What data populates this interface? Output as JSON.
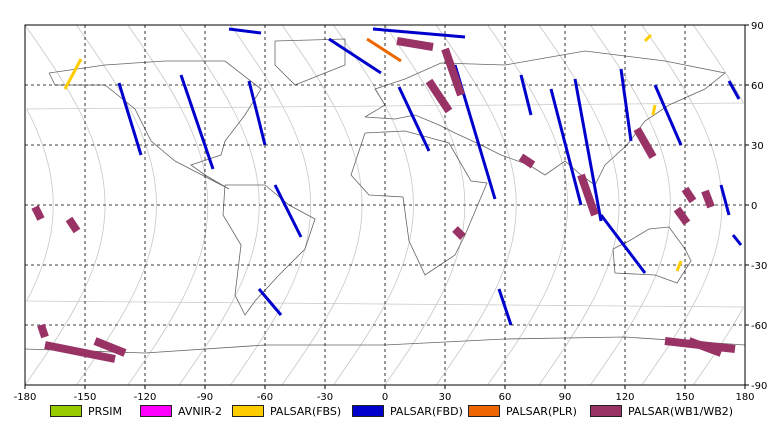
{
  "chart_data": {
    "type": "scatter",
    "title": "",
    "xlabel": "",
    "ylabel": "",
    "xlim": [
      -180,
      180
    ],
    "ylim": [
      -90,
      90
    ],
    "grid": true,
    "legend_placement": "bottom",
    "x_ticks": [
      "-180",
      "-150",
      "-120",
      "-90",
      "-60",
      "-30",
      "0",
      "30",
      "60",
      "90",
      "120",
      "150",
      "180"
    ],
    "y_ticks": [
      "90",
      "60",
      "30",
      "0",
      "-30",
      "-60",
      "-90"
    ],
    "series": [
      {
        "name": "PRSIM",
        "color": "#99cc00",
        "segments": []
      },
      {
        "name": "AVNIR-2",
        "color": "#ff00ff",
        "segments": []
      },
      {
        "name": "PALSAR(FBS)",
        "color": "#ffcc00",
        "segments": [
          [
            [
              -152,
              73
            ],
            [
              -160,
              58
            ]
          ],
          [
            [
              133,
              85
            ],
            [
              130,
              82
            ]
          ],
          [
            [
              135,
              50
            ],
            [
              134,
              45
            ]
          ],
          [
            [
              148,
              -28
            ],
            [
              146,
              -33
            ]
          ]
        ]
      },
      {
        "name": "PALSAR(FBD)",
        "color": "#0000cc",
        "segments": [
          [
            [
              -133,
              61
            ],
            [
              -122,
              25
            ]
          ],
          [
            [
              -102,
              65
            ],
            [
              -86,
              18
            ]
          ],
          [
            [
              -68,
              62
            ],
            [
              -60,
              30
            ]
          ],
          [
            [
              -55,
              10
            ],
            [
              -42,
              -16
            ]
          ],
          [
            [
              -63,
              -42
            ],
            [
              -52,
              -55
            ]
          ],
          [
            [
              -28,
              83
            ],
            [
              -2,
              66
            ]
          ],
          [
            [
              -78,
              88
            ],
            [
              -62,
              86
            ]
          ],
          [
            [
              7,
              59
            ],
            [
              22,
              27
            ]
          ],
          [
            [
              35,
              70
            ],
            [
              55,
              3
            ]
          ],
          [
            [
              57,
              -42
            ],
            [
              63,
              -60
            ]
          ],
          [
            [
              68,
              65
            ],
            [
              73,
              45
            ]
          ],
          [
            [
              118,
              68
            ],
            [
              123,
              32
            ]
          ],
          [
            [
              95,
              63
            ],
            [
              108,
              -8
            ]
          ],
          [
            [
              108,
              -5
            ],
            [
              130,
              -34
            ]
          ],
          [
            [
              83,
              58
            ],
            [
              98,
              0
            ]
          ],
          [
            [
              135,
              60
            ],
            [
              148,
              30
            ]
          ],
          [
            [
              172,
              62
            ],
            [
              177,
              53
            ]
          ],
          [
            [
              168,
              10
            ],
            [
              172,
              -5
            ]
          ],
          [
            [
              174,
              -15
            ],
            [
              178,
              -20
            ]
          ],
          [
            [
              -6,
              88
            ],
            [
              40,
              84
            ]
          ]
        ]
      },
      {
        "name": "PALSAR(PLR)",
        "color": "#ee6600",
        "segments": [
          [
            [
              -9,
              83
            ],
            [
              8,
              72
            ]
          ]
        ]
      },
      {
        "name": "PALSAR(WB1/WB2)",
        "color": "#993366",
        "segments": [
          [
            [
              6,
              82
            ],
            [
              24,
              79
            ]
          ],
          [
            [
              30,
              78
            ],
            [
              38,
              55
            ]
          ],
          [
            [
              22,
              62
            ],
            [
              32,
              47
            ]
          ],
          [
            [
              68,
              24
            ],
            [
              74,
              20
            ]
          ],
          [
            [
              98,
              15
            ],
            [
              105,
              -5
            ]
          ],
          [
            [
              126,
              38
            ],
            [
              134,
              24
            ]
          ],
          [
            [
              150,
              8
            ],
            [
              154,
              2
            ]
          ],
          [
            [
              146,
              -2
            ],
            [
              151,
              -9
            ]
          ],
          [
            [
              160,
              7
            ],
            [
              163,
              -1
            ]
          ],
          [
            [
              -175,
              -1
            ],
            [
              -172,
              -7
            ]
          ],
          [
            [
              -158,
              -7
            ],
            [
              -154,
              -13
            ]
          ],
          [
            [
              -170,
              -70
            ],
            [
              -135,
              -77
            ]
          ],
          [
            [
              -145,
              -68
            ],
            [
              -130,
              -74
            ]
          ],
          [
            [
              140,
              -68
            ],
            [
              175,
              -72
            ]
          ],
          [
            [
              152,
              -68
            ],
            [
              168,
              -74
            ]
          ],
          [
            [
              -172,
              -60
            ],
            [
              -170,
              -66
            ]
          ],
          [
            [
              35,
              -12
            ],
            [
              39,
              -16
            ]
          ]
        ]
      }
    ]
  }
}
